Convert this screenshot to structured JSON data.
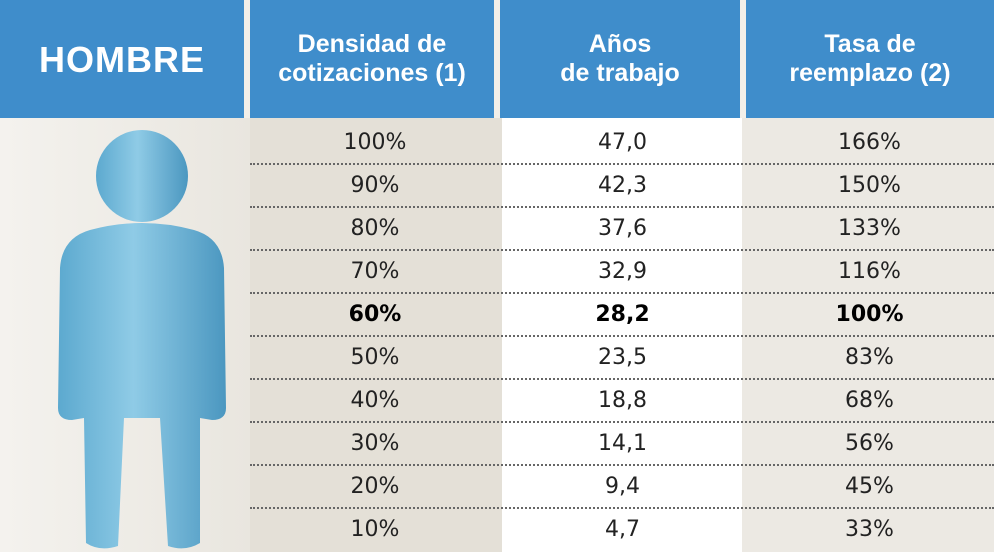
{
  "header": {
    "columns": [
      [
        "HOMBRE"
      ],
      [
        "Densidad de",
        "cotizaciones (1)"
      ],
      [
        "Años",
        "de trabajo"
      ],
      [
        "Tasa de",
        "reemplazo (2)"
      ]
    ]
  },
  "table": {
    "rows": [
      [
        "100%",
        "47,0",
        "166%"
      ],
      [
        "90%",
        "42,3",
        "150%"
      ],
      [
        "80%",
        "37,6",
        "133%"
      ],
      [
        "70%",
        "32,9",
        "116%"
      ],
      [
        "60%",
        "28,2",
        "100%"
      ],
      [
        "50%",
        "23,5",
        "83%"
      ],
      [
        "40%",
        "18,8",
        "68%"
      ],
      [
        "30%",
        "14,1",
        "56%"
      ],
      [
        "20%",
        "9,4",
        "45%"
      ],
      [
        "10%",
        "4,7",
        "33%"
      ]
    ]
  }
}
